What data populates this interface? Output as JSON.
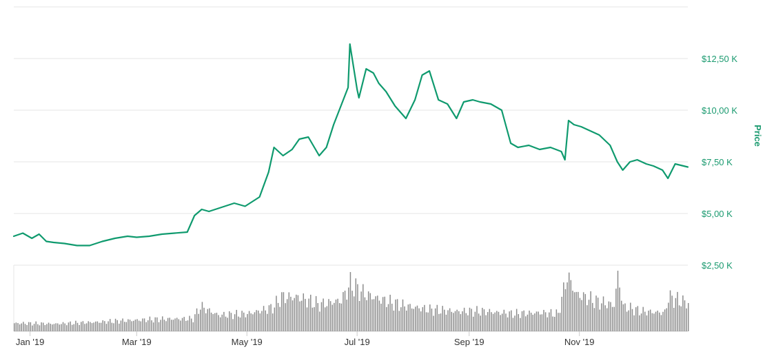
{
  "chart_data": {
    "type": "line",
    "title": "",
    "ylabel": "Price",
    "y_tick_labels": [
      "$2,50 K",
      "$5,00 K",
      "$7,50 K",
      "$10,00 K",
      "$12,50 K"
    ],
    "y_ticks": [
      2500,
      5000,
      7500,
      10000,
      12500
    ],
    "ylim": [
      2500,
      15000
    ],
    "x_tick_labels": [
      "Jan '19",
      "Mar '19",
      "May '19",
      "Jul '19",
      "Sep '19",
      "Nov '19"
    ],
    "x_ticks": [
      "2019-01-01",
      "2019-03-01",
      "2019-05-01",
      "2019-07-01",
      "2019-09-01",
      "2019-11-01"
    ],
    "xlim": [
      "2018-12-23",
      "2019-12-31"
    ],
    "grid": true,
    "colors": {
      "line": "#0f9a6e",
      "volume": "#8c8c8c"
    },
    "series": [
      {
        "type": "line",
        "x": [
          "2018-12-23",
          "2018-12-28",
          "2019-01-02",
          "2019-01-06",
          "2019-01-10",
          "2019-01-14",
          "2019-01-20",
          "2019-01-27",
          "2019-02-03",
          "2019-02-10",
          "2019-02-17",
          "2019-02-24",
          "2019-03-01",
          "2019-03-08",
          "2019-03-15",
          "2019-03-22",
          "2019-03-29",
          "2019-04-02",
          "2019-04-06",
          "2019-04-10",
          "2019-04-17",
          "2019-04-24",
          "2019-04-30",
          "2019-05-08",
          "2019-05-13",
          "2019-05-16",
          "2019-05-21",
          "2019-05-26",
          "2019-05-30",
          "2019-06-04",
          "2019-06-10",
          "2019-06-14",
          "2019-06-18",
          "2019-06-22",
          "2019-06-26",
          "2019-06-27",
          "2019-07-01",
          "2019-07-02",
          "2019-07-06",
          "2019-07-10",
          "2019-07-13",
          "2019-07-17",
          "2019-07-22",
          "2019-07-28",
          "2019-08-02",
          "2019-08-06",
          "2019-08-10",
          "2019-08-15",
          "2019-08-20",
          "2019-08-25",
          "2019-08-29",
          "2019-09-03",
          "2019-09-07",
          "2019-09-13",
          "2019-09-19",
          "2019-09-24",
          "2019-09-28",
          "2019-10-04",
          "2019-10-10",
          "2019-10-16",
          "2019-10-22",
          "2019-10-24",
          "2019-10-26",
          "2019-10-29",
          "2019-11-02",
          "2019-11-07",
          "2019-11-12",
          "2019-11-18",
          "2019-11-22",
          "2019-11-25",
          "2019-11-29",
          "2019-12-03",
          "2019-12-08",
          "2019-12-12",
          "2019-12-17",
          "2019-12-20",
          "2019-12-24",
          "2019-12-31"
        ],
        "values": [
          3900,
          4050,
          3800,
          4000,
          3650,
          3600,
          3550,
          3450,
          3450,
          3650,
          3800,
          3900,
          3850,
          3900,
          4000,
          4050,
          4100,
          4900,
          5200,
          5100,
          5300,
          5500,
          5350,
          5800,
          7000,
          8200,
          7800,
          8100,
          8600,
          8700,
          7800,
          8200,
          9300,
          10200,
          11100,
          13200,
          11000,
          10600,
          12000,
          11800,
          11300,
          10900,
          10200,
          9600,
          10500,
          11700,
          11900,
          10500,
          10300,
          9600,
          10400,
          10500,
          10400,
          10300,
          10000,
          8400,
          8200,
          8300,
          8100,
          8200,
          8000,
          7600,
          9500,
          9300,
          9200,
          9000,
          8800,
          8300,
          7500,
          7100,
          7500,
          7600,
          7400,
          7300,
          7100,
          6700,
          7400,
          7250
        ]
      },
      {
        "type": "bar",
        "x": [
          "2018-12-23",
          "2019-01-15",
          "2019-02-08",
          "2019-02-28",
          "2019-03-20",
          "2019-04-01",
          "2019-04-05",
          "2019-04-15",
          "2019-05-01",
          "2019-05-15",
          "2019-05-20",
          "2019-05-29",
          "2019-06-10",
          "2019-06-22",
          "2019-06-27",
          "2019-07-05",
          "2019-07-15",
          "2019-07-25",
          "2019-08-10",
          "2019-08-25",
          "2019-09-10",
          "2019-09-25",
          "2019-10-10",
          "2019-10-20",
          "2019-10-25",
          "2019-10-30",
          "2019-11-10",
          "2019-11-20",
          "2019-11-22",
          "2019-11-25",
          "2019-12-05",
          "2019-12-18",
          "2019-12-20",
          "2019-12-31"
        ],
        "values": [
          13,
          12,
          15,
          18,
          20,
          20,
          40,
          26,
          28,
          38,
          55,
          55,
          43,
          50,
          76,
          60,
          50,
          42,
          35,
          32,
          32,
          28,
          30,
          28,
          90,
          60,
          48,
          42,
          90,
          40,
          32,
          30,
          55,
          45
        ]
      }
    ]
  }
}
